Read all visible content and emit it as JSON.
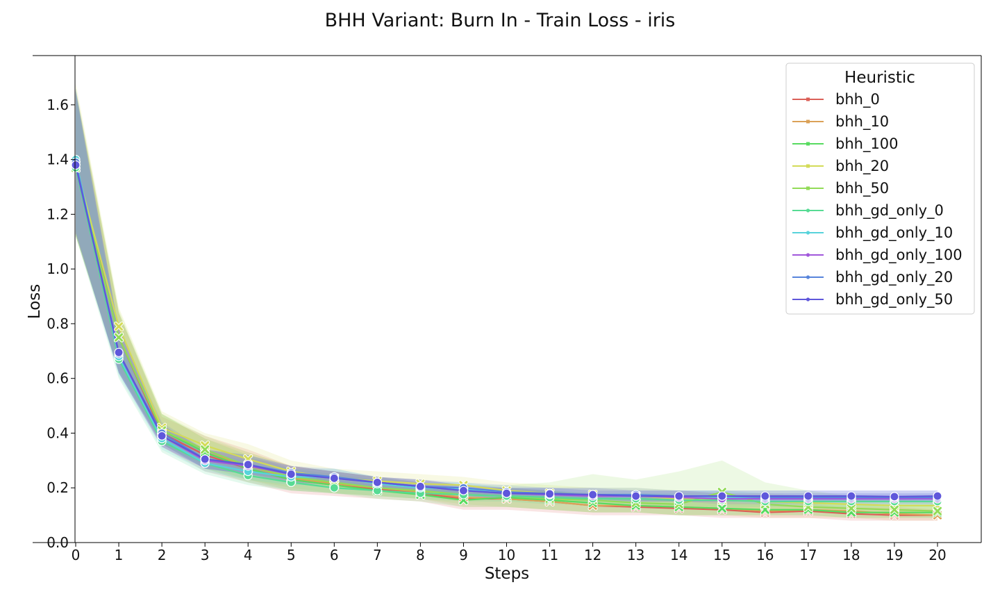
{
  "chart_data": {
    "type": "line",
    "title": "BHH Variant: Burn In - Train Loss - iris",
    "xlabel": "Steps",
    "ylabel": "Loss",
    "xlim": [
      0,
      21
    ],
    "ylim": [
      0,
      1.78
    ],
    "x_ticks": [
      0,
      1,
      2,
      3,
      4,
      5,
      6,
      7,
      8,
      9,
      10,
      11,
      12,
      13,
      14,
      15,
      16,
      17,
      18,
      19,
      20
    ],
    "y_ticks": [
      0.0,
      0.2,
      0.4,
      0.6,
      0.8,
      1.0,
      1.2,
      1.4,
      1.6
    ],
    "y_tick_labels": [
      "0.0",
      "0.2",
      "0.4",
      "0.6",
      "0.8",
      "1.0",
      "1.2",
      "1.4",
      "1.6"
    ],
    "grid": false,
    "legend": {
      "title": "Heuristic",
      "placement": "top-right"
    },
    "x": [
      0,
      1,
      2,
      3,
      4,
      5,
      6,
      7,
      8,
      9,
      10,
      11,
      12,
      13,
      14,
      15,
      16,
      17,
      18,
      19,
      20
    ],
    "series": [
      {
        "name": "bhh_0",
        "color": "#db5f57",
        "marker": "x",
        "values": [
          1.38,
          0.75,
          0.4,
          0.32,
          0.27,
          0.23,
          0.21,
          0.195,
          0.18,
          0.16,
          0.16,
          0.15,
          0.135,
          0.13,
          0.125,
          0.12,
          0.11,
          0.115,
          0.105,
          0.1,
          0.1
        ],
        "band": [
          [
            1.13,
            1.65
          ],
          [
            0.62,
            0.84
          ],
          [
            0.35,
            0.46
          ],
          [
            0.26,
            0.39
          ],
          [
            0.22,
            0.34
          ],
          [
            0.18,
            0.28
          ],
          [
            0.17,
            0.26
          ],
          [
            0.16,
            0.24
          ],
          [
            0.15,
            0.22
          ],
          [
            0.12,
            0.2
          ],
          [
            0.12,
            0.2
          ],
          [
            0.11,
            0.19
          ],
          [
            0.1,
            0.17
          ],
          [
            0.1,
            0.16
          ],
          [
            0.1,
            0.16
          ],
          [
            0.09,
            0.15
          ],
          [
            0.09,
            0.14
          ],
          [
            0.09,
            0.14
          ],
          [
            0.08,
            0.13
          ],
          [
            0.08,
            0.13
          ],
          [
            0.08,
            0.12
          ]
        ]
      },
      {
        "name": "bhh_10",
        "color": "#dba157",
        "marker": "x",
        "values": [
          1.37,
          0.75,
          0.41,
          0.33,
          0.28,
          0.235,
          0.215,
          0.2,
          0.185,
          0.165,
          0.16,
          0.15,
          0.135,
          0.135,
          0.13,
          0.125,
          0.115,
          0.12,
          0.115,
          0.105,
          0.1
        ],
        "band": [
          [
            1.12,
            1.66
          ],
          [
            0.63,
            0.84
          ],
          [
            0.36,
            0.47
          ],
          [
            0.27,
            0.38
          ],
          [
            0.23,
            0.33
          ],
          [
            0.19,
            0.28
          ],
          [
            0.18,
            0.26
          ],
          [
            0.17,
            0.24
          ],
          [
            0.16,
            0.22
          ],
          [
            0.13,
            0.2
          ],
          [
            0.13,
            0.2
          ],
          [
            0.12,
            0.19
          ],
          [
            0.11,
            0.17
          ],
          [
            0.11,
            0.17
          ],
          [
            0.1,
            0.16
          ],
          [
            0.1,
            0.16
          ],
          [
            0.09,
            0.15
          ],
          [
            0.09,
            0.15
          ],
          [
            0.09,
            0.14
          ],
          [
            0.08,
            0.13
          ],
          [
            0.08,
            0.13
          ]
        ]
      },
      {
        "name": "bhh_100",
        "color": "#57db5f",
        "marker": "x",
        "values": [
          1.37,
          0.75,
          0.41,
          0.33,
          0.27,
          0.23,
          0.21,
          0.19,
          0.175,
          0.155,
          0.165,
          0.155,
          0.145,
          0.135,
          0.13,
          0.125,
          0.12,
          0.12,
          0.11,
          0.11,
          0.11
        ],
        "band": [
          [
            1.12,
            1.65
          ],
          [
            0.62,
            0.84
          ],
          [
            0.36,
            0.47
          ],
          [
            0.27,
            0.38
          ],
          [
            0.22,
            0.32
          ],
          [
            0.19,
            0.27
          ],
          [
            0.18,
            0.25
          ],
          [
            0.16,
            0.23
          ],
          [
            0.15,
            0.21
          ],
          [
            0.13,
            0.19
          ],
          [
            0.13,
            0.2
          ],
          [
            0.12,
            0.19
          ],
          [
            0.11,
            0.18
          ],
          [
            0.11,
            0.17
          ],
          [
            0.1,
            0.16
          ],
          [
            0.1,
            0.16
          ],
          [
            0.1,
            0.15
          ],
          [
            0.1,
            0.15
          ],
          [
            0.09,
            0.14
          ],
          [
            0.09,
            0.14
          ],
          [
            0.09,
            0.14
          ]
        ]
      },
      {
        "name": "bhh_20",
        "color": "#d3db57",
        "marker": "x",
        "values": [
          1.38,
          0.79,
          0.42,
          0.355,
          0.305,
          0.26,
          0.235,
          0.225,
          0.215,
          0.21,
          0.19,
          0.18,
          0.175,
          0.17,
          0.16,
          0.155,
          0.15,
          0.145,
          0.14,
          0.135,
          0.135
        ],
        "band": [
          [
            1.12,
            1.68
          ],
          [
            0.66,
            0.86
          ],
          [
            0.37,
            0.48
          ],
          [
            0.3,
            0.4
          ],
          [
            0.26,
            0.36
          ],
          [
            0.22,
            0.3
          ],
          [
            0.2,
            0.27
          ],
          [
            0.19,
            0.26
          ],
          [
            0.18,
            0.25
          ],
          [
            0.17,
            0.24
          ],
          [
            0.16,
            0.22
          ],
          [
            0.15,
            0.21
          ],
          [
            0.14,
            0.2
          ],
          [
            0.14,
            0.2
          ],
          [
            0.13,
            0.19
          ],
          [
            0.13,
            0.18
          ],
          [
            0.12,
            0.18
          ],
          [
            0.12,
            0.17
          ],
          [
            0.11,
            0.17
          ],
          [
            0.11,
            0.16
          ],
          [
            0.11,
            0.16
          ]
        ]
      },
      {
        "name": "bhh_50",
        "color": "#92db57",
        "marker": "x",
        "values": [
          1.37,
          0.75,
          0.41,
          0.34,
          0.28,
          0.24,
          0.22,
          0.2,
          0.19,
          0.175,
          0.17,
          0.16,
          0.155,
          0.145,
          0.14,
          0.185,
          0.14,
          0.13,
          0.125,
          0.12,
          0.115
        ],
        "band": [
          [
            1.12,
            1.66
          ],
          [
            0.63,
            0.85
          ],
          [
            0.36,
            0.47
          ],
          [
            0.28,
            0.39
          ],
          [
            0.23,
            0.33
          ],
          [
            0.2,
            0.28
          ],
          [
            0.18,
            0.26
          ],
          [
            0.17,
            0.24
          ],
          [
            0.16,
            0.23
          ],
          [
            0.14,
            0.21
          ],
          [
            0.13,
            0.21
          ],
          [
            0.12,
            0.22
          ],
          [
            0.11,
            0.25
          ],
          [
            0.11,
            0.23
          ],
          [
            0.1,
            0.26
          ],
          [
            0.1,
            0.3
          ],
          [
            0.1,
            0.22
          ],
          [
            0.1,
            0.19
          ],
          [
            0.09,
            0.17
          ],
          [
            0.09,
            0.16
          ],
          [
            0.09,
            0.15
          ]
        ]
      },
      {
        "name": "bhh_gd_only_0",
        "color": "#57db94",
        "marker": "o",
        "values": [
          1.37,
          0.67,
          0.37,
          0.29,
          0.245,
          0.22,
          0.2,
          0.19,
          0.18,
          0.175,
          0.17,
          0.165,
          0.16,
          0.16,
          0.155,
          0.155,
          0.15,
          0.15,
          0.15,
          0.15,
          0.15
        ],
        "band": [
          [
            1.12,
            1.64
          ],
          [
            0.6,
            0.75
          ],
          [
            0.33,
            0.41
          ],
          [
            0.25,
            0.33
          ],
          [
            0.21,
            0.28
          ],
          [
            0.19,
            0.25
          ],
          [
            0.18,
            0.23
          ],
          [
            0.17,
            0.21
          ],
          [
            0.16,
            0.2
          ],
          [
            0.15,
            0.2
          ],
          [
            0.15,
            0.19
          ],
          [
            0.14,
            0.19
          ],
          [
            0.14,
            0.18
          ],
          [
            0.14,
            0.18
          ],
          [
            0.13,
            0.18
          ],
          [
            0.13,
            0.18
          ],
          [
            0.13,
            0.17
          ],
          [
            0.13,
            0.17
          ],
          [
            0.13,
            0.17
          ],
          [
            0.13,
            0.17
          ],
          [
            0.13,
            0.17
          ]
        ]
      },
      {
        "name": "bhh_gd_only_10",
        "color": "#57d3db",
        "marker": "o",
        "values": [
          1.4,
          0.68,
          0.38,
          0.29,
          0.26,
          0.24,
          0.24,
          0.215,
          0.2,
          0.195,
          0.18,
          0.175,
          0.17,
          0.17,
          0.165,
          0.165,
          0.16,
          0.16,
          0.16,
          0.16,
          0.16
        ],
        "band": [
          [
            1.14,
            1.66
          ],
          [
            0.61,
            0.76
          ],
          [
            0.34,
            0.42
          ],
          [
            0.26,
            0.33
          ],
          [
            0.23,
            0.3
          ],
          [
            0.21,
            0.27
          ],
          [
            0.21,
            0.27
          ],
          [
            0.19,
            0.24
          ],
          [
            0.18,
            0.22
          ],
          [
            0.17,
            0.22
          ],
          [
            0.16,
            0.2
          ],
          [
            0.16,
            0.2
          ],
          [
            0.15,
            0.19
          ],
          [
            0.15,
            0.19
          ],
          [
            0.15,
            0.19
          ],
          [
            0.15,
            0.19
          ],
          [
            0.14,
            0.18
          ],
          [
            0.14,
            0.18
          ],
          [
            0.14,
            0.18
          ],
          [
            0.14,
            0.18
          ],
          [
            0.14,
            0.18
          ]
        ]
      },
      {
        "name": "bhh_gd_only_100",
        "color": "#a157db",
        "marker": "o",
        "values": [
          1.38,
          0.69,
          0.39,
          0.3,
          0.28,
          0.25,
          0.235,
          0.22,
          0.205,
          0.19,
          0.18,
          0.175,
          0.17,
          0.17,
          0.165,
          0.16,
          0.16,
          0.16,
          0.16,
          0.16,
          0.16
        ],
        "band": [
          [
            1.13,
            1.65
          ],
          [
            0.62,
            0.78
          ],
          [
            0.35,
            0.43
          ],
          [
            0.27,
            0.34
          ],
          [
            0.25,
            0.31
          ],
          [
            0.22,
            0.28
          ],
          [
            0.21,
            0.26
          ],
          [
            0.2,
            0.24
          ],
          [
            0.19,
            0.23
          ],
          [
            0.17,
            0.21
          ],
          [
            0.16,
            0.2
          ],
          [
            0.16,
            0.2
          ],
          [
            0.15,
            0.19
          ],
          [
            0.15,
            0.19
          ],
          [
            0.15,
            0.19
          ],
          [
            0.14,
            0.18
          ],
          [
            0.14,
            0.18
          ],
          [
            0.14,
            0.18
          ],
          [
            0.14,
            0.18
          ],
          [
            0.14,
            0.18
          ],
          [
            0.14,
            0.18
          ]
        ]
      },
      {
        "name": "bhh_gd_only_20",
        "color": "#5784db",
        "marker": "o",
        "values": [
          1.39,
          0.69,
          0.4,
          0.305,
          0.285,
          0.255,
          0.24,
          0.22,
          0.205,
          0.2,
          0.185,
          0.18,
          0.175,
          0.175,
          0.17,
          0.17,
          0.165,
          0.165,
          0.165,
          0.165,
          0.165
        ],
        "band": [
          [
            1.13,
            1.66
          ],
          [
            0.62,
            0.78
          ],
          [
            0.36,
            0.44
          ],
          [
            0.27,
            0.34
          ],
          [
            0.25,
            0.32
          ],
          [
            0.23,
            0.28
          ],
          [
            0.22,
            0.27
          ],
          [
            0.2,
            0.24
          ],
          [
            0.19,
            0.23
          ],
          [
            0.18,
            0.22
          ],
          [
            0.17,
            0.21
          ],
          [
            0.16,
            0.2
          ],
          [
            0.16,
            0.2
          ],
          [
            0.16,
            0.2
          ],
          [
            0.15,
            0.19
          ],
          [
            0.15,
            0.19
          ],
          [
            0.15,
            0.19
          ],
          [
            0.15,
            0.19
          ],
          [
            0.15,
            0.19
          ],
          [
            0.15,
            0.19
          ],
          [
            0.15,
            0.19
          ]
        ]
      },
      {
        "name": "bhh_gd_only_50",
        "color": "#5f57db",
        "marker": "o",
        "values": [
          1.38,
          0.695,
          0.39,
          0.305,
          0.285,
          0.25,
          0.235,
          0.22,
          0.205,
          0.19,
          0.18,
          0.178,
          0.175,
          0.17,
          0.17,
          0.17,
          0.17,
          0.17,
          0.17,
          0.168,
          0.17
        ],
        "band": [
          [
            1.13,
            1.65
          ],
          [
            0.62,
            0.78
          ],
          [
            0.35,
            0.43
          ],
          [
            0.27,
            0.34
          ],
          [
            0.25,
            0.32
          ],
          [
            0.22,
            0.28
          ],
          [
            0.21,
            0.26
          ],
          [
            0.2,
            0.24
          ],
          [
            0.19,
            0.23
          ],
          [
            0.17,
            0.21
          ],
          [
            0.16,
            0.2
          ],
          [
            0.16,
            0.2
          ],
          [
            0.16,
            0.2
          ],
          [
            0.15,
            0.19
          ],
          [
            0.15,
            0.19
          ],
          [
            0.15,
            0.19
          ],
          [
            0.15,
            0.19
          ],
          [
            0.15,
            0.19
          ],
          [
            0.15,
            0.19
          ],
          [
            0.15,
            0.19
          ],
          [
            0.15,
            0.19
          ]
        ]
      }
    ]
  }
}
